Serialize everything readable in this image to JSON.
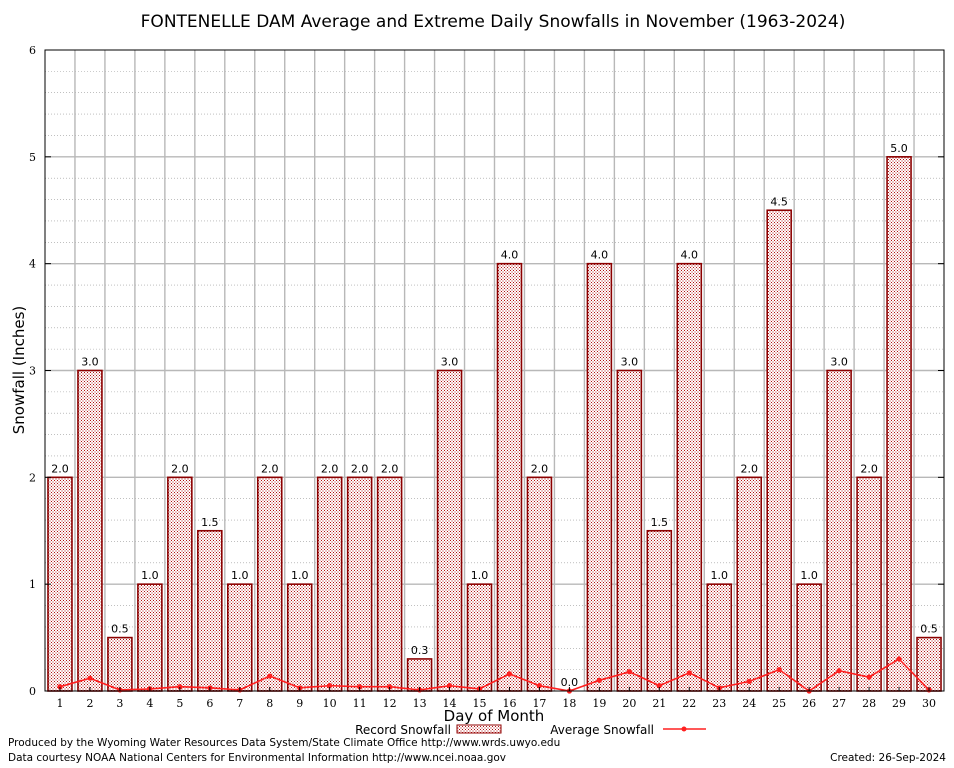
{
  "chart_data": {
    "type": "bar",
    "title": "FONTENELLE DAM Average and Extreme Daily Snowfalls in November (1963-2024)",
    "xlabel": "Day of Month",
    "ylabel": "Snowfall (Inches)",
    "ylim": [
      0,
      6
    ],
    "yticks": [
      "0",
      "1",
      "2",
      "3",
      "4",
      "5",
      "6"
    ],
    "grid": true,
    "legend_position": "bottom-center",
    "categories": [
      "1",
      "2",
      "3",
      "4",
      "5",
      "6",
      "7",
      "8",
      "9",
      "10",
      "11",
      "12",
      "13",
      "14",
      "15",
      "16",
      "17",
      "18",
      "19",
      "20",
      "21",
      "22",
      "23",
      "24",
      "25",
      "26",
      "27",
      "28",
      "29",
      "30"
    ],
    "series": [
      {
        "name": "Record Snowfall",
        "type": "bar",
        "color": "#c00000",
        "values": [
          2.0,
          3.0,
          0.5,
          1.0,
          2.0,
          1.5,
          1.0,
          2.0,
          1.0,
          2.0,
          2.0,
          2.0,
          0.3,
          3.0,
          1.0,
          4.0,
          2.0,
          0.0,
          4.0,
          3.0,
          1.5,
          4.0,
          1.0,
          2.0,
          4.5,
          1.0,
          3.0,
          2.0,
          5.0,
          0.5
        ],
        "labels": [
          "2.0",
          "3.0",
          "0.5",
          "1.0",
          "2.0",
          "1.5",
          "1.0",
          "2.0",
          "1.0",
          "2.0",
          "2.0",
          "2.0",
          "0.3",
          "3.0",
          "1.0",
          "4.0",
          "2.0",
          "0.0",
          "4.0",
          "3.0",
          "1.5",
          "4.0",
          "1.0",
          "2.0",
          "4.5",
          "1.0",
          "3.0",
          "2.0",
          "5.0",
          "0.5"
        ]
      },
      {
        "name": "Average Snowfall",
        "type": "line",
        "color": "#ff2020",
        "values": [
          0.04,
          0.12,
          0.01,
          0.02,
          0.04,
          0.03,
          0.01,
          0.14,
          0.03,
          0.05,
          0.04,
          0.04,
          0.01,
          0.05,
          0.02,
          0.16,
          0.05,
          0.0,
          0.1,
          0.18,
          0.05,
          0.17,
          0.03,
          0.09,
          0.2,
          0.0,
          0.19,
          0.13,
          0.3,
          0.01
        ]
      }
    ]
  },
  "footer": {
    "produced_by": "Produced by the Wyoming Water Resources Data System/State Climate Office http://www.wrds.uwyo.edu",
    "data_courtesy": "Data courtesy NOAA National Centers for Environmental Information http://www.ncei.noaa.gov",
    "created": "Created:  26-Sep-2024"
  }
}
